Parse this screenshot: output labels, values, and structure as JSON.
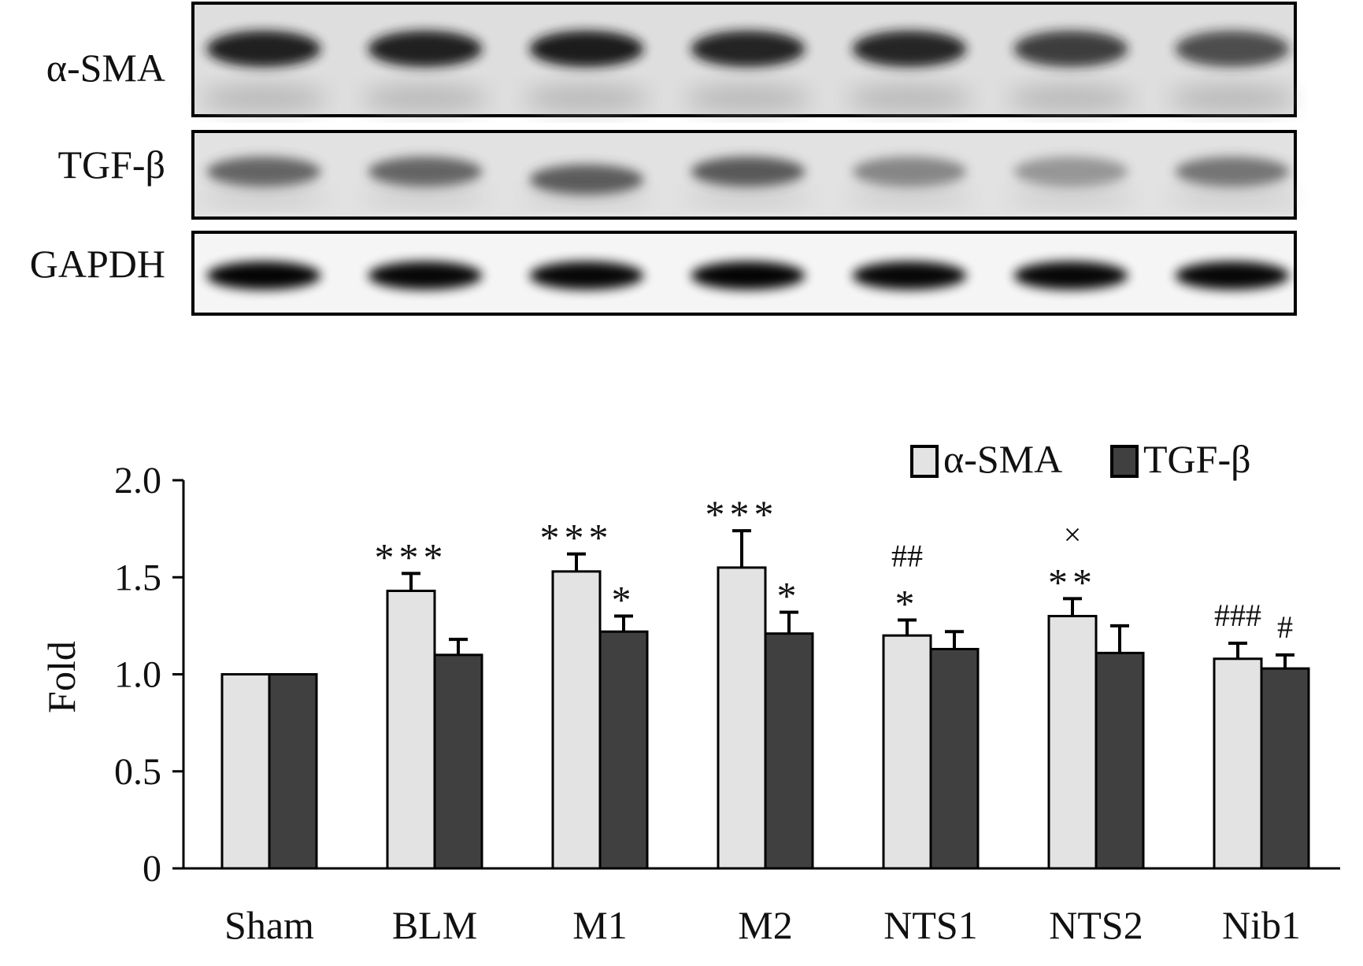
{
  "blot": {
    "lane_count": 7,
    "rows": [
      {
        "label": "α-SMA"
      },
      {
        "label": "TGF-β"
      },
      {
        "label": "GAPDH"
      }
    ]
  },
  "chart_data": {
    "type": "bar",
    "title": "",
    "xlabel": "",
    "ylabel": "Fold",
    "ylim": [
      0,
      2.0
    ],
    "yticks": [
      "0",
      "0.5",
      "1.0",
      "1.5",
      "2.0"
    ],
    "grid": false,
    "legend_position": "top-right",
    "categories": [
      "Sham",
      "BLM",
      "M1",
      "M2",
      "NTS1",
      "NTS2",
      "Nib1"
    ],
    "series": [
      {
        "name": "α-SMA",
        "color": "#e3e3e3",
        "values": [
          1.0,
          1.43,
          1.53,
          1.55,
          1.2,
          1.3,
          1.08
        ],
        "errors": [
          0,
          0.09,
          0.09,
          0.19,
          0.08,
          0.09,
          0.08
        ],
        "annotations": [
          "",
          "***",
          "***",
          "***",
          "##\n*",
          "×\n**",
          "###"
        ]
      },
      {
        "name": "TGF-β",
        "color": "#404040",
        "values": [
          1.0,
          1.1,
          1.22,
          1.21,
          1.13,
          1.11,
          1.03
        ],
        "errors": [
          0,
          0.08,
          0.08,
          0.11,
          0.09,
          0.14,
          0.07
        ],
        "annotations": [
          "",
          "",
          "*",
          "*",
          "",
          "",
          "#"
        ]
      }
    ]
  }
}
